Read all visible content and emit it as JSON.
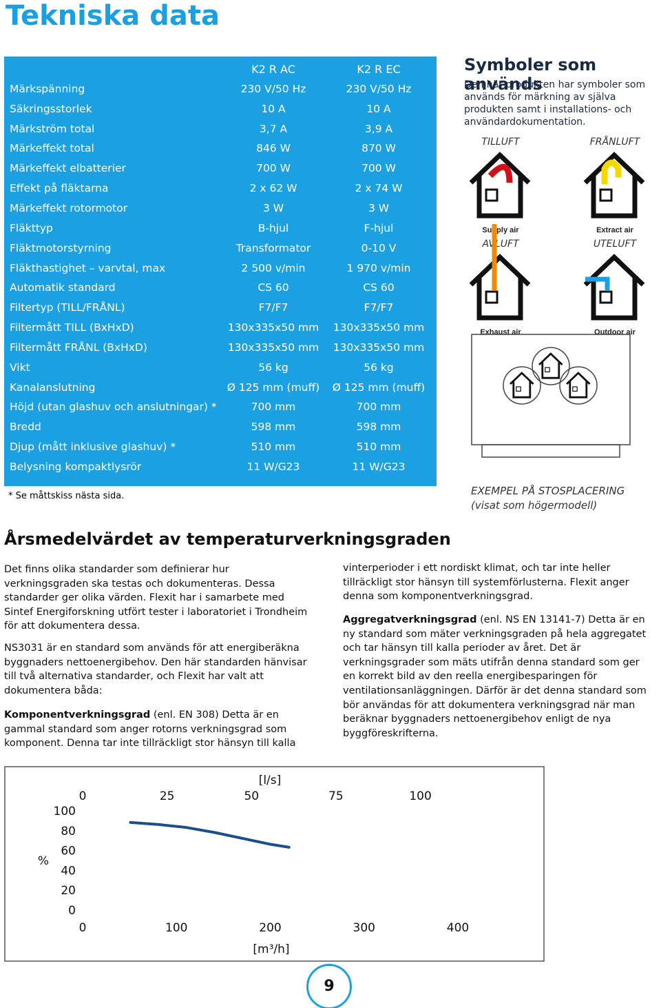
{
  "title": "Tekniska data",
  "table": {
    "header": [
      "K2 R AC",
      "K2 R EC"
    ],
    "rows": [
      [
        "Märkspänning",
        "230 V/50 Hz",
        "230 V/50 Hz"
      ],
      [
        "Säkringsstorlek",
        "10 A",
        "10 A"
      ],
      [
        "Märkström total",
        "3,7 A",
        "3,9 A"
      ],
      [
        "Märkeffekt total",
        "846 W",
        "870 W"
      ],
      [
        "Märkeffekt elbatterier",
        "700 W",
        "700 W"
      ],
      [
        "Effekt på fläktarna",
        "2 x 62 W",
        "2 x 74 W"
      ],
      [
        "Märkeffekt rotormotor",
        "3 W",
        "3 W"
      ],
      [
        "Fläkttyp",
        "B-hjul",
        "F-hjul"
      ],
      [
        "Fläktmotorstyrning",
        "Transformator",
        "0-10 V"
      ],
      [
        "Fläkthastighet – varvtal, max",
        "2 500 v/min",
        "1 970 v/min"
      ],
      [
        "Automatik standard",
        "CS 60",
        "CS 60"
      ],
      [
        "Filtertyp (TILL/FRÅNL)",
        "F7/F7",
        "F7/F7"
      ],
      [
        "Filtermått TILL (BxHxD)",
        "130x335x50 mm",
        "130x335x50 mm"
      ],
      [
        "Filtermått FRÅNL (BxHxD)",
        "130x335x50 mm",
        "130x335x50 mm"
      ],
      [
        "Vikt",
        "56 kg",
        "56 kg"
      ],
      [
        "Kanalanslutning",
        "Ø 125 mm (muff)",
        "Ø 125 mm (muff)"
      ],
      [
        "Höjd (utan glashuv och anslutningar) *",
        "700 mm",
        "700 mm"
      ],
      [
        "Bredd",
        "598 mm",
        "598 mm"
      ],
      [
        "Djup (mått inklusive glashuv) *",
        "510 mm",
        "510 mm"
      ],
      [
        "Belysning kompaktlysrör",
        "11 W/G23",
        "11 W/G23"
      ]
    ],
    "footnote": "* Se måttskiss nästa sida."
  },
  "symbols": {
    "title": "Symboler som används",
    "text": "Den här produkten har symboler som används för märkning av själva produkten samt i installations- och användardokumentation.",
    "items": [
      {
        "label": "TILLUFT",
        "caption": "Supply air"
      },
      {
        "label": "FRÅNLUFT",
        "caption": "Extract air"
      },
      {
        "label": "AVLUFT",
        "caption": "Exhaust air"
      },
      {
        "label": "UTELUFT",
        "caption": "Outdoor air"
      }
    ],
    "example": [
      "EXEMPEL PÅ STOSPLACERING",
      "(visat som högermodell)"
    ]
  },
  "article": {
    "heading": "Årsmedelvärdet av temperaturverkningsgraden",
    "p1": "Det finns olika standarder som definierar hur verkningsgraden ska testas och dokumenteras. Dessa standarder ger olika värden. Flexit har i samarbete med Sintef Energiforskning utfört tester i laboratoriet i Trondheim för att dokumentera dessa.",
    "p2": "NS3031 är en standard som används för att energiberäkna byggnaders nettoenergibehov. Den här standarden hänvisar till två alternativa standarder, och Flexit har valt att dokumentera båda:",
    "p3": {
      "bold": "Komponentverkningsgrad",
      "text": " (enl. EN 308) Detta är en gammal standard som anger rotorns verkningsgrad som komponent. Denna tar inte tillräckligt stor hänsyn till kalla",
      "cont": "vinterperioder i ett nordiskt klimat, och tar inte heller tillräckligt stor hänsyn till systemförlusterna. Flexit anger denna som komponentverkningsgrad."
    },
    "p4": {
      "bold": "Aggregatverkningsgrad",
      "text": " (enl. NS EN 13141-7) Detta är en ny standard som mäter verkningsgraden på hela aggregatet och tar hänsyn till kalla perioder av året. Det är verkningsgrader som mäts utifrån denna standard som ger en korrekt bild av den reella energibesparingen för ventilationsanläggningen. Därför är det denna standard som bör användas för att dokumentera verkningsgrad när man beräknar byggnaders nettoenergibehov enligt de nya byggföreskrifterna."
    }
  },
  "chart_data": {
    "type": "line",
    "x_label": "[m³/h]",
    "x2_label": "[l/s]",
    "y_label": "%",
    "x": [
      51,
      80,
      110,
      140,
      175,
      200,
      220
    ],
    "series": [
      {
        "values": [
          89,
          87,
          84,
          79,
          72,
          67,
          64
        ],
        "color": "#1a4f8a"
      }
    ],
    "xlim": [
      0,
      400
    ],
    "xticks": [
      0,
      100,
      200,
      300,
      400
    ],
    "x2lim": [
      0,
      111.1
    ],
    "x2ticks": [
      0,
      25,
      50,
      75,
      100
    ],
    "ylim": [
      0,
      100
    ],
    "yticks": [
      0,
      20,
      40,
      60,
      80,
      100
    ]
  },
  "page_number": "9"
}
